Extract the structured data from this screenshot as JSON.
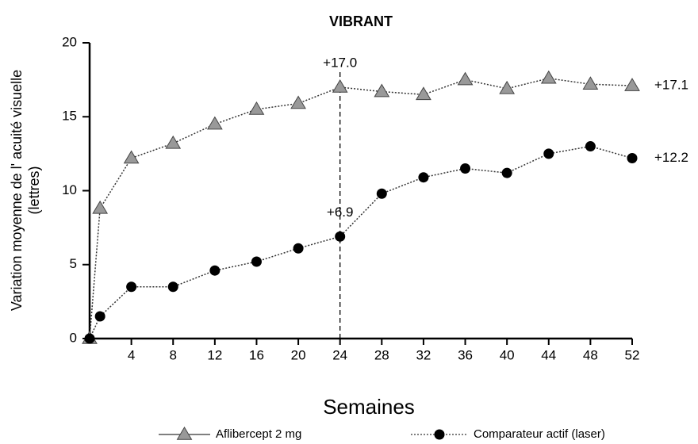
{
  "chart_data": {
    "type": "line",
    "title": "VIBRANT",
    "y_label": [
      "Variation moyenne de l'  acuité visuelle",
      "(lettres)"
    ],
    "x_label": "Semaines",
    "x": [
      0,
      1,
      4,
      8,
      12,
      16,
      20,
      24,
      28,
      32,
      36,
      40,
      44,
      48,
      52
    ],
    "series": [
      {
        "name": "Aflibercept 2 mg",
        "color": "#999999",
        "marker": "triangle",
        "values": [
          0,
          8.8,
          12.2,
          13.2,
          14.5,
          15.5,
          15.9,
          17.0,
          16.7,
          16.5,
          17.5,
          16.9,
          17.6,
          17.2,
          17.1
        ],
        "value_labels": [
          null,
          null,
          null,
          null,
          null,
          null,
          null,
          "+17.0",
          null,
          null,
          null,
          null,
          null,
          null,
          "+17.1"
        ]
      },
      {
        "name": "Comparateur actif (laser)",
        "color": "#000000",
        "marker": "circle",
        "values": [
          0,
          1.5,
          3.5,
          3.5,
          4.6,
          5.2,
          6.1,
          6.9,
          9.8,
          10.9,
          11.5,
          11.2,
          12.5,
          13.0,
          12.2
        ],
        "value_labels": [
          null,
          null,
          null,
          null,
          null,
          null,
          null,
          "+6.9",
          null,
          null,
          null,
          null,
          null,
          null,
          "+12.2"
        ]
      }
    ],
    "reference_x": 24,
    "xlim": [
      0,
      52
    ],
    "xticks": [
      4,
      8,
      12,
      16,
      20,
      24,
      28,
      32,
      36,
      40,
      44,
      48,
      52
    ],
    "ylim": [
      0,
      20
    ],
    "yticks": [
      0,
      5,
      10,
      15,
      20
    ]
  }
}
